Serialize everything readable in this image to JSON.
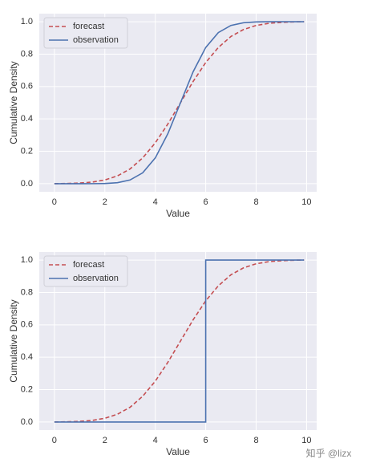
{
  "chart_data": [
    {
      "type": "line",
      "x_label": "Value",
      "y_label": "Cumulative Density",
      "x": [
        0,
        0.5,
        1,
        1.5,
        2,
        2.5,
        3,
        3.5,
        4,
        4.5,
        5,
        5.5,
        6,
        6.5,
        7,
        7.5,
        8,
        8.5,
        9,
        9.5,
        9.9
      ],
      "series": [
        {
          "name": "forecast",
          "color": "#c44e52",
          "dash": true,
          "values": [
            0.0004,
            0.0013,
            0.0038,
            0.0098,
            0.023,
            0.048,
            0.091,
            0.159,
            0.252,
            0.369,
            0.5,
            0.631,
            0.748,
            0.841,
            0.909,
            0.952,
            0.977,
            0.99,
            0.996,
            0.999,
            1.0
          ]
        },
        {
          "name": "observation",
          "color": "#4c72b0",
          "dash": false,
          "values": [
            0,
            0,
            0,
            0.0002,
            0.001,
            0.006,
            0.023,
            0.067,
            0.159,
            0.309,
            0.5,
            0.691,
            0.841,
            0.933,
            0.977,
            0.994,
            0.999,
            1,
            1,
            1,
            1
          ]
        }
      ],
      "xlim": [
        -0.6,
        10.4
      ],
      "xticks": [
        0,
        2,
        4,
        6,
        8,
        10
      ],
      "ylim": [
        -0.05,
        1.05
      ],
      "yticks": [
        {
          "value": 0,
          "label": "0.0"
        },
        0.2,
        0.4,
        0.6,
        0.8,
        {
          "value": 1,
          "label": "1.0"
        }
      ],
      "grid": true,
      "legend": "upper-left"
    },
    {
      "type": "line",
      "x_label": "Value",
      "y_label": "Cumulative Density",
      "x": [
        0,
        0.5,
        1,
        1.5,
        2,
        2.5,
        3,
        3.5,
        4,
        4.5,
        5,
        5.5,
        6,
        6,
        6.5,
        7,
        7.5,
        8,
        8.5,
        9,
        9.5,
        9.9
      ],
      "series": [
        {
          "name": "forecast",
          "color": "#c44e52",
          "dash": true,
          "values": [
            0.0004,
            0.0013,
            0.0038,
            0.0098,
            0.023,
            0.048,
            0.091,
            0.159,
            0.252,
            0.369,
            0.5,
            0.631,
            0.748,
            0.748,
            0.841,
            0.909,
            0.952,
            0.977,
            0.99,
            0.996,
            0.999,
            1.0
          ]
        },
        {
          "name": "observation",
          "color": "#4c72b0",
          "dash": false,
          "values": [
            0,
            0,
            0,
            0,
            0,
            0,
            0,
            0,
            0,
            0,
            0,
            0,
            0,
            1,
            1,
            1,
            1,
            1,
            1,
            1,
            1,
            1
          ]
        }
      ],
      "xlim": [
        -0.6,
        10.4
      ],
      "xticks": [
        0,
        2,
        4,
        6,
        8,
        10
      ],
      "ylim": [
        -0.05,
        1.05
      ],
      "yticks": [
        {
          "value": 0,
          "label": "0.0"
        },
        0.2,
        0.4,
        0.6,
        0.8,
        {
          "value": 1,
          "label": "1.0"
        }
      ],
      "grid": true,
      "legend": "upper-left"
    }
  ],
  "watermark": "知乎 @lizx"
}
